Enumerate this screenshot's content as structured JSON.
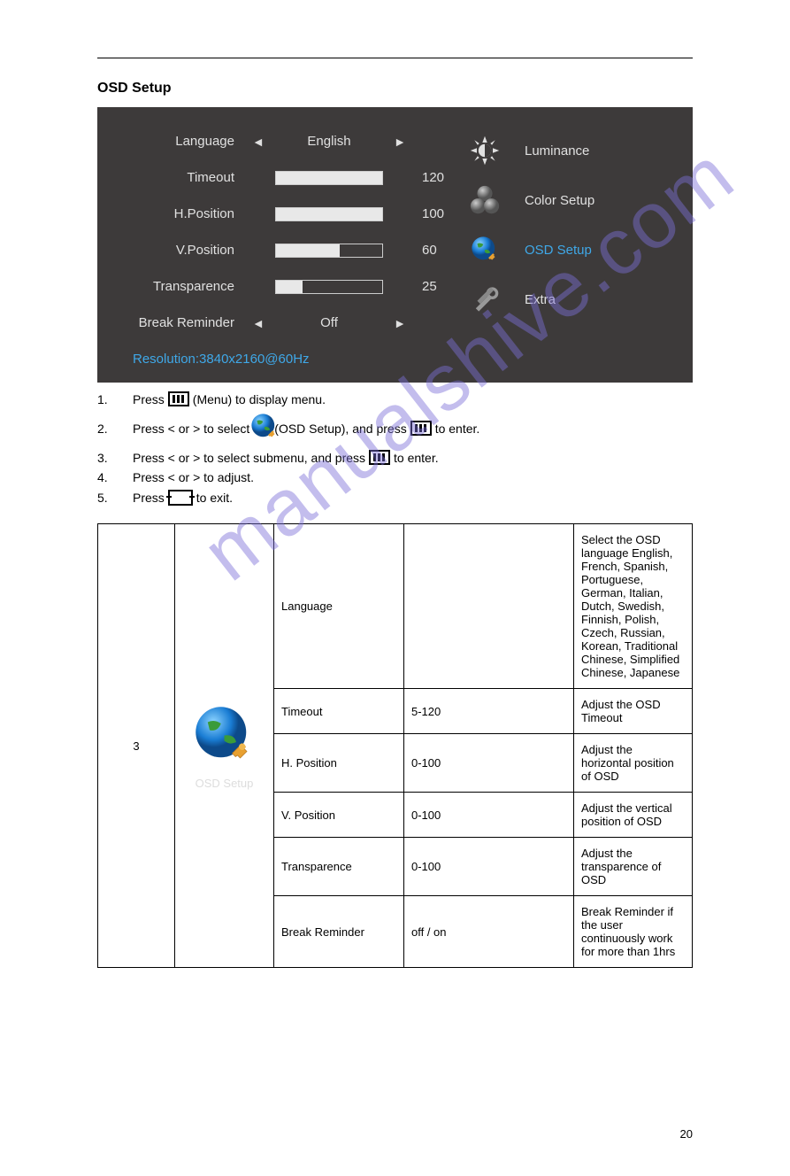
{
  "section_title": "OSD Setup",
  "osd": {
    "items": [
      {
        "label": "Language",
        "type": "select",
        "value": "English"
      },
      {
        "label": "Timeout",
        "type": "slider",
        "value": 120,
        "pct": 100
      },
      {
        "label": "H.Position",
        "type": "slider",
        "value": 100,
        "pct": 100
      },
      {
        "label": "V.Position",
        "type": "slider",
        "value": 60,
        "pct": 60
      },
      {
        "label": "Transparence",
        "type": "slider",
        "value": 25,
        "pct": 25
      },
      {
        "label": "Break Reminder",
        "type": "select",
        "value": "Off"
      }
    ],
    "resolution": "Resolution:3840x2160@60Hz",
    "menu": [
      {
        "label": "Luminance",
        "icon": "brightness",
        "selected": false
      },
      {
        "label": "Color Setup",
        "icon": "spheres",
        "selected": false
      },
      {
        "label": "OSD Setup",
        "icon": "globe",
        "selected": true
      },
      {
        "label": "Extra",
        "icon": "tools",
        "selected": false
      }
    ],
    "colors": {
      "bg": "#3d3a3a",
      "text": "#e0e0e0",
      "accent": "#3fa8e8",
      "slider_fill": "#e8e8e8"
    }
  },
  "steps": [
    {
      "n": "1.",
      "parts": [
        "Press ",
        "MENU",
        " (Menu) to display menu."
      ]
    },
    {
      "n": "2.",
      "parts": [
        "Press < or > to select ",
        "GLOBE",
        " (OSD Setup), and press ",
        "MENU",
        " to enter."
      ]
    },
    {
      "n": "3.",
      "parts": [
        "Press < or > to select submenu, and press ",
        "MENU",
        " to enter."
      ]
    },
    {
      "n": "4.",
      "parts": [
        "Press < or > to adjust."
      ]
    },
    {
      "n": "5.",
      "parts": [
        "Press ",
        "AUTO",
        " to exit."
      ]
    }
  ],
  "table": {
    "header_col": "OSD Setup",
    "rows": [
      {
        "name": "Language",
        "range": "",
        "desc": "Select the OSD language\nEnglish, French, Spanish, Portuguese, German, Italian, Dutch, Swedish, Finnish, Polish, Czech, Russian, Korean, Traditional Chinese, Simplified Chinese, Japanese"
      },
      {
        "name": "Timeout",
        "range": "5-120",
        "desc": "Adjust the OSD Timeout"
      },
      {
        "name": "H. Position",
        "range": "0-100",
        "desc": "Adjust the horizontal position of OSD"
      },
      {
        "name": "V. Position",
        "range": "0-100",
        "desc": "Adjust the vertical position of OSD"
      },
      {
        "name": "Transparence",
        "range": "0-100",
        "desc": "Adjust the transparence of OSD"
      },
      {
        "name": "Break Reminder",
        "range": "off / on",
        "desc": "Break Reminder if the user continuously work for more than 1hrs"
      }
    ]
  },
  "page_number": "20",
  "watermark": "manualshive.com"
}
